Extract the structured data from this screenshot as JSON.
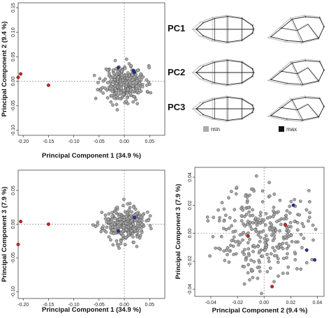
{
  "chart_data": [
    {
      "type": "scatter",
      "id": "pc1_pc2",
      "xlabel": "Principal Component 1 (34.9 %)",
      "ylabel": "Principal Component 2 (9.4 %)",
      "xlim": [
        -0.21,
        0.08
      ],
      "ylim": [
        -0.11,
        0.16
      ],
      "xticks": [
        -0.2,
        -0.15,
        -0.1,
        -0.05,
        0.0,
        0.05
      ],
      "xtick_labels": [
        "-0.20",
        "-0.15",
        "-0.10",
        "-0.05",
        "0.00",
        "0.05"
      ],
      "yticks": [
        -0.1,
        -0.05,
        0.0,
        0.05,
        0.1,
        0.15
      ],
      "ytick_labels": [
        "-0.10",
        "-0.05",
        "0.00",
        "0.05",
        "0.10",
        "0.15"
      ],
      "highlight_points": [
        {
          "x": -0.205,
          "y": 0.015,
          "color": "#cc2222"
        },
        {
          "x": -0.21,
          "y": 0.008,
          "color": "#cc2222"
        },
        {
          "x": -0.15,
          "y": -0.008,
          "color": "#cc2222"
        },
        {
          "x": -0.012,
          "y": 0.028,
          "color": "#1f2f9a"
        },
        {
          "x": 0.018,
          "y": 0.022,
          "color": "#1f2f9a"
        },
        {
          "x": 0.02,
          "y": 0.018,
          "color": "#1f2f9a"
        }
      ],
      "cloud": {
        "count": 300,
        "center": [
          0.0,
          -0.004
        ],
        "sd": [
          0.021,
          0.018
        ],
        "seed": 11
      }
    },
    {
      "type": "scatter",
      "id": "pc1_pc3",
      "xlabel": "Principal Component 1 (34.9 %)",
      "ylabel": "Principal Component 3 (7.9 %)",
      "xlim": [
        -0.21,
        0.08
      ],
      "ylim": [
        -0.11,
        0.08
      ],
      "xticks": [
        -0.2,
        -0.15,
        -0.1,
        -0.05,
        0.0,
        0.05
      ],
      "xtick_labels": [
        "-0.20",
        "-0.15",
        "-0.10",
        "-0.05",
        "0.00",
        "0.05"
      ],
      "yticks": [
        -0.1,
        -0.05,
        0.0,
        0.05
      ],
      "ytick_labels": [
        "-0.10",
        "-0.05",
        "0.00",
        "0.05"
      ],
      "highlight_points": [
        {
          "x": -0.205,
          "y": 0.004,
          "color": "#cc2222"
        },
        {
          "x": -0.21,
          "y": -0.03,
          "color": "#cc2222"
        },
        {
          "x": -0.15,
          "y": 0.0,
          "color": "#cc2222"
        },
        {
          "x": -0.012,
          "y": -0.01,
          "color": "#1f2f9a"
        },
        {
          "x": 0.02,
          "y": 0.01,
          "color": "#1f2f9a"
        }
      ],
      "cloud": {
        "count": 300,
        "center": [
          0.0,
          0.0
        ],
        "sd": [
          0.021,
          0.012
        ],
        "seed": 23
      }
    },
    {
      "type": "scatter",
      "id": "pc2_pc3",
      "xlabel": "Principal Component 2 (9.4 %)",
      "ylabel": "Principal Component 3 (7.9 %)",
      "xlim": [
        -0.052,
        0.045
      ],
      "ylim": [
        -0.045,
        0.047
      ],
      "xticks": [
        -0.04,
        -0.02,
        0.0,
        0.02,
        0.04
      ],
      "xtick_labels": [
        "-0.04",
        "-0.02",
        "0.00",
        "0.02",
        "0.04"
      ],
      "yticks": [
        -0.04,
        -0.02,
        0.0,
        0.02,
        0.04
      ],
      "ytick_labels": [
        "-0.04",
        "-0.02",
        "0.00",
        "0.02",
        "0.04"
      ],
      "highlight_points": [
        {
          "x": 0.006,
          "y": -0.038,
          "color": "#cc2222"
        },
        {
          "x": -0.012,
          "y": -0.002,
          "color": "#cc2222"
        },
        {
          "x": 0.016,
          "y": 0.006,
          "color": "#cc2222"
        },
        {
          "x": 0.022,
          "y": 0.02,
          "color": "#1f2f9a"
        },
        {
          "x": 0.032,
          "y": -0.012,
          "color": "#1f2f9a"
        },
        {
          "x": 0.038,
          "y": -0.019,
          "color": "#1f2f9a"
        }
      ],
      "cloud": {
        "count": 300,
        "center": [
          -0.002,
          0.002
        ],
        "sd": [
          0.017,
          0.016
        ],
        "seed": 37
      }
    }
  ],
  "shape_panel": {
    "rows": [
      {
        "label": "PC1"
      },
      {
        "label": "PC2"
      },
      {
        "label": "PC3"
      }
    ],
    "legend": [
      {
        "label": "min",
        "color": "#aaaaaa"
      },
      {
        "label": "max",
        "color": "#111111"
      }
    ]
  },
  "colors": {
    "cloud_fill": "#a8a8a8",
    "cloud_stroke": "#3a3a3a",
    "red": "#cc2222",
    "blue": "#1f2f9a"
  }
}
